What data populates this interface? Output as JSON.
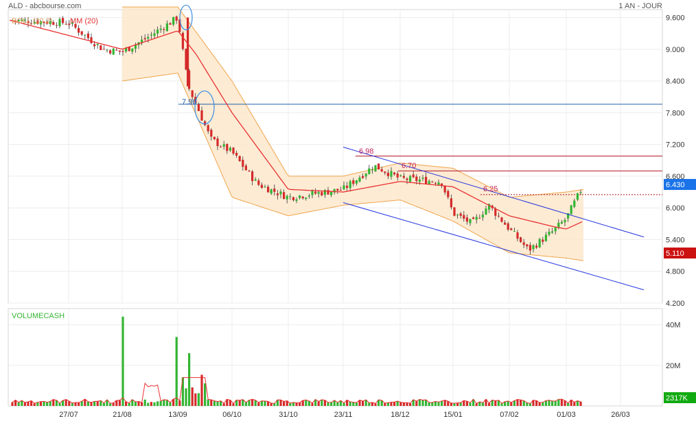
{
  "header": {
    "title": "ALD - abcbourse.com",
    "period": "1 AN - JOUR"
  },
  "legend": {
    "bollinger": "BOLL (20,2)",
    "ma": "MM (20)"
  },
  "volume_panel": {
    "label": "VOLUMECASH",
    "last_badge": "2317K",
    "ticks": [
      "40M",
      "20M"
    ]
  },
  "price_axis": {
    "ticks": [
      "9.600",
      "9.000",
      "8.400",
      "7.800",
      "7.200",
      "6.600",
      "6.000",
      "5.400",
      "4.800",
      "4.200"
    ],
    "last_price_badge": "6.430",
    "min_badge": "5.110"
  },
  "annotations": {
    "level_1": "7.96",
    "level_2": "6.98",
    "level_3": "6.70",
    "level_4": "6.25"
  },
  "date_axis": {
    "ticks": [
      "27/07",
      "21/08",
      "13/09",
      "06/10",
      "31/10",
      "23/11",
      "18/12",
      "15/01",
      "07/02",
      "01/03",
      "26/03"
    ]
  },
  "colors": {
    "up": "#33b533",
    "down": "#d42a2a",
    "ma": "#e83030",
    "band_fill": "#fde7cc",
    "band_line": "#f0a54a",
    "channel": "#2233dd",
    "hline": "#1f5fa8",
    "last_badge": "#1a73e8",
    "min_badge": "#cc1111",
    "vol_badge": "#11aa11"
  },
  "chart_data": {
    "type": "candlestick",
    "title": "ALD",
    "ylim": [
      4.2,
      9.75
    ],
    "y_ticks": [
      9.6,
      9.0,
      8.4,
      7.8,
      7.2,
      6.6,
      6.0,
      5.4,
      4.8,
      4.2
    ],
    "x_ticks": [
      "27/07",
      "21/08",
      "13/09",
      "06/10",
      "31/10",
      "23/11",
      "18/12",
      "15/01",
      "07/02",
      "01/03",
      "26/03"
    ],
    "close_path": [
      [
        "start",
        9.55
      ],
      [
        "27/07",
        9.5
      ],
      [
        "13/08",
        9.0
      ],
      [
        "21/08",
        8.95
      ],
      [
        "01/09",
        9.2
      ],
      [
        "13/09",
        9.6
      ],
      [
        "14/09",
        8.3
      ],
      [
        "20/09",
        7.95
      ],
      [
        "27/09",
        7.3
      ],
      [
        "06/10",
        7.05
      ],
      [
        "16/10",
        6.45
      ],
      [
        "31/10",
        6.2
      ],
      [
        "23/11",
        6.35
      ],
      [
        "04/12",
        6.8
      ],
      [
        "18/12",
        6.55
      ],
      [
        "08/01",
        6.5
      ],
      [
        "15/01",
        5.9
      ],
      [
        "25/01",
        5.7
      ],
      [
        "30/01",
        6.05
      ],
      [
        "07/02",
        5.6
      ],
      [
        "13/02",
        5.2
      ],
      [
        "22/02",
        5.55
      ],
      [
        "01/03",
        5.8
      ],
      [
        "07/03",
        6.43
      ]
    ],
    "moving_average_20": [
      [
        "start",
        9.55
      ],
      [
        "21/08",
        9.0
      ],
      [
        "13/09",
        9.35
      ],
      [
        "20/09",
        8.9
      ],
      [
        "06/10",
        7.8
      ],
      [
        "31/10",
        6.35
      ],
      [
        "23/11",
        6.3
      ],
      [
        "18/12",
        6.5
      ],
      [
        "15/01",
        6.4
      ],
      [
        "07/02",
        5.85
      ],
      [
        "22/02",
        5.65
      ],
      [
        "01/03",
        5.6
      ],
      [
        "07/03",
        5.75
      ]
    ],
    "bollinger_upper": [
      [
        "21/08",
        9.8
      ],
      [
        "13/09",
        9.8
      ],
      [
        "06/10",
        8.4
      ],
      [
        "31/10",
        6.6
      ],
      [
        "23/11",
        6.6
      ],
      [
        "18/12",
        6.85
      ],
      [
        "15/01",
        6.75
      ],
      [
        "07/02",
        6.2
      ],
      [
        "01/03",
        6.3
      ],
      [
        "07/03",
        6.35
      ]
    ],
    "bollinger_lower": [
      [
        "21/08",
        8.4
      ],
      [
        "13/09",
        8.55
      ],
      [
        "06/10",
        6.2
      ],
      [
        "31/10",
        5.85
      ],
      [
        "23/11",
        6.05
      ],
      [
        "18/12",
        6.15
      ],
      [
        "15/01",
        5.75
      ],
      [
        "07/02",
        5.15
      ],
      [
        "01/03",
        5.05
      ],
      [
        "07/03",
        5.0
      ]
    ],
    "horizontal_levels": [
      7.96,
      6.98,
      6.7,
      6.25
    ],
    "channel_upper": [
      [
        "23/11",
        7.15
      ],
      [
        "26/03",
        5.45
      ]
    ],
    "channel_lower": [
      [
        "23/11",
        6.1
      ],
      [
        "26/03",
        4.45
      ]
    ],
    "last_close": 6.43,
    "period_low": 5.11,
    "volume": {
      "label": "VOLUMECASH",
      "ylim": [
        0,
        48
      ],
      "unit": "M",
      "y_ticks": [
        40,
        20
      ],
      "last": 2.317,
      "spikes": [
        [
          "21/08",
          44
        ],
        [
          "13/09",
          34
        ],
        [
          "14/09",
          26
        ]
      ]
    }
  }
}
